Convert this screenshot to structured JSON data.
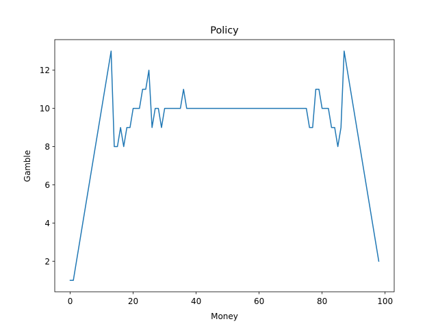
{
  "chart_data": {
    "type": "line",
    "title": "Policy",
    "xlabel": "Money",
    "ylabel": "Gamble",
    "xlim": [
      -4.9,
      102.9
    ],
    "ylim": [
      0.4,
      13.6
    ],
    "xticks": [
      0,
      20,
      40,
      60,
      80,
      100
    ],
    "yticks": [
      2,
      4,
      6,
      8,
      10,
      12
    ],
    "grid": false,
    "series": [
      {
        "color": "#1f77b4",
        "x": [
          0,
          1,
          2,
          3,
          4,
          5,
          6,
          7,
          8,
          9,
          10,
          11,
          12,
          13,
          14,
          15,
          16,
          17,
          18,
          19,
          20,
          21,
          22,
          23,
          24,
          25,
          26,
          27,
          28,
          29,
          30,
          31,
          32,
          33,
          34,
          35,
          36,
          37,
          38,
          39,
          40,
          41,
          42,
          43,
          44,
          45,
          46,
          47,
          48,
          49,
          50,
          51,
          52,
          53,
          54,
          55,
          56,
          57,
          58,
          59,
          60,
          61,
          62,
          63,
          64,
          65,
          66,
          67,
          68,
          69,
          70,
          71,
          72,
          73,
          74,
          75,
          76,
          77,
          78,
          79,
          80,
          81,
          82,
          83,
          84,
          85,
          86,
          87,
          88,
          89,
          90,
          91,
          92,
          93,
          94,
          95,
          96,
          97,
          98
        ],
        "y": [
          1,
          1,
          2,
          3,
          4,
          5,
          6,
          7,
          8,
          9,
          10,
          11,
          12,
          13,
          8,
          8,
          9,
          8,
          9,
          9,
          10,
          10,
          10,
          11,
          11,
          12,
          9,
          10,
          10,
          9,
          10,
          10,
          10,
          10,
          10,
          10,
          11,
          10,
          10,
          10,
          10,
          10,
          10,
          10,
          10,
          10,
          10,
          10,
          10,
          10,
          10,
          10,
          10,
          10,
          10,
          10,
          10,
          10,
          10,
          10,
          10,
          10,
          10,
          10,
          10,
          10,
          10,
          10,
          10,
          10,
          10,
          10,
          10,
          10,
          10,
          10,
          9,
          9,
          11,
          11,
          10,
          10,
          10,
          9,
          9,
          8,
          9,
          13,
          12,
          11,
          10,
          9,
          8,
          7,
          6,
          5,
          4,
          3,
          2
        ]
      }
    ]
  }
}
